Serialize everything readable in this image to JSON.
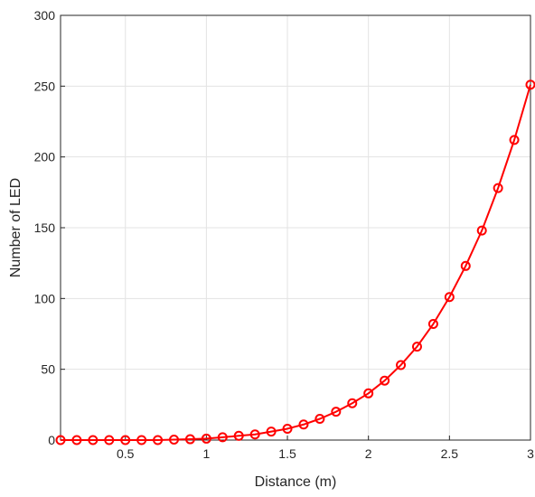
{
  "chart_data": {
    "type": "line",
    "xlabel": "Distance (m)",
    "ylabel": "Number of LED",
    "xlim": [
      0.1,
      3
    ],
    "ylim": [
      0,
      300
    ],
    "x_ticks": [
      0.5,
      1,
      1.5,
      2,
      2.5,
      3
    ],
    "y_ticks": [
      0,
      50,
      100,
      150,
      200,
      250,
      300
    ],
    "x_tick_labels": [
      "0.5",
      "1",
      "1.5",
      "2",
      "2.5",
      "3"
    ],
    "y_tick_labels": [
      "0",
      "50",
      "100",
      "150",
      "200",
      "250",
      "300"
    ],
    "grid": true,
    "series": [
      {
        "color": "#ff0000",
        "marker": "circle",
        "x": [
          0.1,
          0.2,
          0.3,
          0.4,
          0.5,
          0.6,
          0.7,
          0.8,
          0.9,
          1.0,
          1.1,
          1.2,
          1.3,
          1.4,
          1.5,
          1.6,
          1.7,
          1.8,
          1.9,
          2.0,
          2.1,
          2.2,
          2.3,
          2.4,
          2.5,
          2.6,
          2.7,
          2.8,
          2.9,
          3.0
        ],
        "y": [
          0,
          0,
          0,
          0,
          0,
          0,
          0,
          0.3,
          0.6,
          1,
          2,
          3,
          4,
          6,
          8,
          11,
          15,
          20,
          26,
          33,
          42,
          53,
          66,
          82,
          101,
          123,
          148,
          178,
          212,
          251
        ]
      }
    ]
  }
}
